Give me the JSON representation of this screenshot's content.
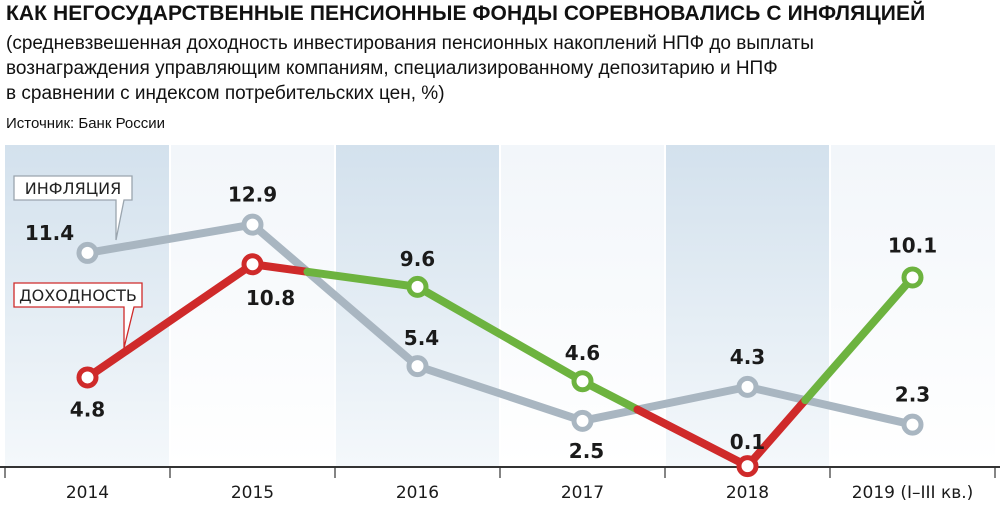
{
  "header": {
    "title": "КАК НЕГОСУДАРСТВЕННЫЕ ПЕНСИОННЫЕ ФОНДЫ СОРЕВНОВАЛИСЬ С ИНФЛЯЦИЕЙ",
    "subtitle_lines": [
      "(средневзвешенная доходность инвестирования пенсионных накоплений НПФ до выплаты",
      "вознаграждения управляющим компаниям, специализированному депозитарию и НПФ",
      "в сравнении с индексом потребительских цен, %)"
    ],
    "source": "Источник: Банк России"
  },
  "chart_data": {
    "type": "line",
    "categories": [
      "2014",
      "2015",
      "2016",
      "2017",
      "2018",
      "2019 (I–III кв.)"
    ],
    "series": [
      {
        "name": "ИНФЛЯЦИЯ",
        "values": [
          11.4,
          12.9,
          5.4,
          2.5,
          4.3,
          2.3
        ],
        "color": "#a9b6c1"
      },
      {
        "name": "ДОХОДНОСТЬ",
        "values": [
          4.8,
          10.8,
          9.6,
          4.6,
          0.1,
          10.1
        ],
        "color_below": "#cf2a2a",
        "color_above": "#6db33f"
      }
    ],
    "ylim": [
      0,
      15
    ],
    "grid": false,
    "legend": "callout labels on left",
    "colors": {
      "band_shaded": "#d3e1ed",
      "band_light": "#f2f6fa",
      "inflation_callout_border": "#9aa5ae",
      "yield_callout_border": "#cf2a2a"
    }
  }
}
